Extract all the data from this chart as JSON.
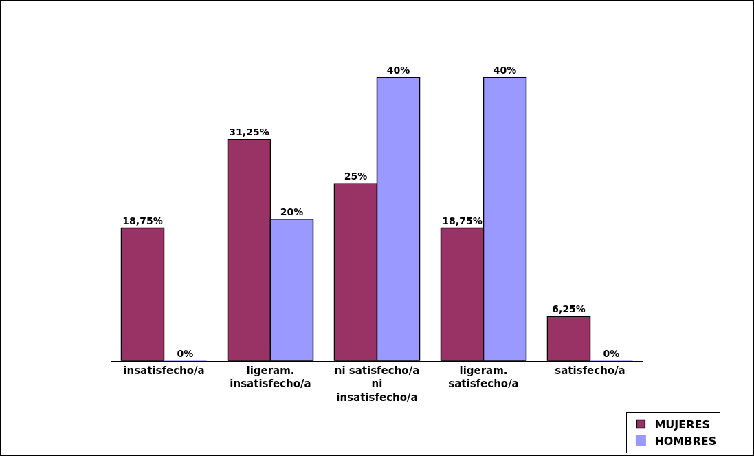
{
  "chart_data": {
    "type": "bar",
    "categories": [
      "insatisfecho/a",
      "ligeram. insatisfecho/a",
      "ni satisfecho/a ni insatisfecho/a",
      "ligeram. satisfecho/a",
      "satisfecho/a"
    ],
    "series": [
      {
        "name": "MUJERES",
        "color": "#993366",
        "values": [
          18.75,
          31.25,
          25,
          18.75,
          6.25
        ],
        "value_labels": [
          "18,75%",
          "31,25%",
          "25%",
          "18,75%",
          "6,25%"
        ]
      },
      {
        "name": "HOMBRES",
        "color": "#9999ff",
        "values": [
          0,
          20,
          40,
          40,
          0
        ],
        "value_labels": [
          "0%",
          "20%",
          "40%",
          "40%",
          "0%"
        ]
      }
    ],
    "legend": "bottom right"
  }
}
